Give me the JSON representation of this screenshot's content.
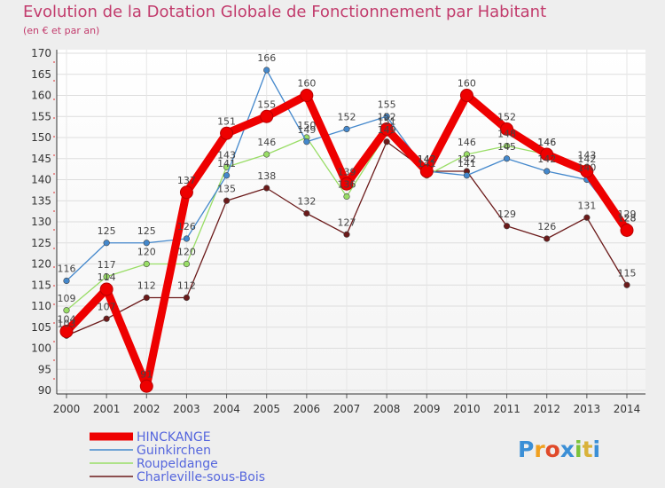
{
  "chart_data": {
    "type": "line",
    "title": "Evolution de la Dotation Globale de Fonctionnement par Habitant",
    "subtitle": "(en € et par an)",
    "categories": [
      "2000",
      "2001",
      "2002",
      "2003",
      "2004",
      "2005",
      "2006",
      "2007",
      "2008",
      "2009",
      "2010",
      "2011",
      "2012",
      "2013",
      "2014"
    ],
    "ylim": [
      90,
      170
    ],
    "yticks": [
      90,
      95,
      100,
      105,
      110,
      115,
      120,
      125,
      130,
      135,
      140,
      145,
      150,
      155,
      160,
      165,
      170
    ],
    "series": [
      {
        "name": "Charleville-sous-Bois",
        "color": "#6b1a1a",
        "values": [
          103,
          107,
          112,
          112,
          135,
          138,
          132,
          127,
          149,
          142,
          142,
          129,
          126,
          131,
          115
        ]
      },
      {
        "name": "Roupeldange",
        "color": "#99dd66",
        "values": [
          109,
          117,
          120,
          120,
          143,
          146,
          150,
          136,
          151,
          141,
          146,
          148,
          146,
          143,
          129
        ]
      },
      {
        "name": "Guinkirchen",
        "color": "#4488cc",
        "values": [
          116,
          125,
          125,
          126,
          141,
          166,
          149,
          152,
          155,
          142,
          141,
          145,
          142,
          140,
          128
        ]
      },
      {
        "name": "HINCKANGE",
        "color": "#ee0000",
        "values": [
          104,
          114,
          91,
          137,
          151,
          155,
          160,
          139,
          152,
          142,
          160,
          152,
          146,
          142,
          128
        ]
      }
    ],
    "legend": [
      "HINCKANGE",
      "Guinkirchen",
      "Roupeldange",
      "Charleville-sous-Bois"
    ],
    "legend_color": "#5566dd",
    "brand": "Proxiti"
  }
}
